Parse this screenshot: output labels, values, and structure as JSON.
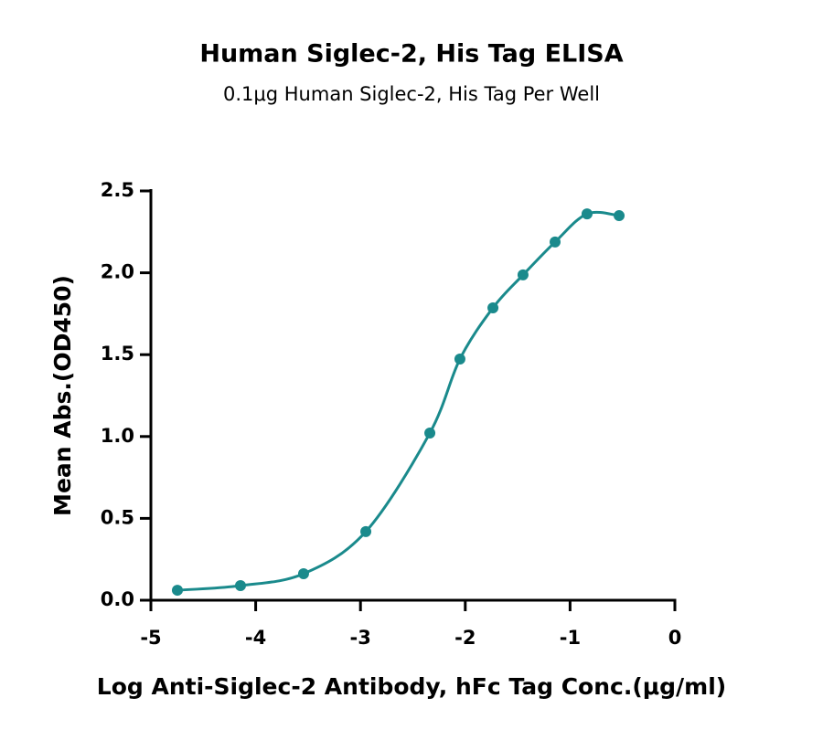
{
  "chart_data": {
    "type": "scatter",
    "title": "Human Siglec-2, His Tag ELISA",
    "subtitle": "0.1μg Human Siglec-2, His Tag Per Well",
    "x_label": "Log Anti-Siglec-2 Antibody, hFc Tag Conc.(μg/ml)",
    "y_label": "Mean Abs.(OD450)",
    "xlim": [
      -5,
      0
    ],
    "xticks": [
      -5,
      -4,
      -3,
      -2,
      -1,
      0
    ],
    "ylim": [
      0,
      2.5
    ],
    "yticks": [
      {
        "value": 0,
        "label": "0.0"
      },
      0.5,
      {
        "value": 1,
        "label": "1.0"
      },
      1.5,
      {
        "value": 2,
        "label": "2.0"
      },
      2.5
    ],
    "smooth_line": true,
    "series": [
      {
        "color": "#1a8a8c",
        "x": [
          -4.747,
          -4.145,
          -3.543,
          -2.949,
          -2.338,
          -2.051,
          -1.736,
          -1.449,
          -1.143,
          -0.838,
          -0.532
        ],
        "values": [
          0.061,
          0.089,
          0.162,
          0.419,
          1.021,
          1.473,
          1.786,
          1.987,
          2.188,
          2.36,
          2.349
        ]
      }
    ]
  }
}
